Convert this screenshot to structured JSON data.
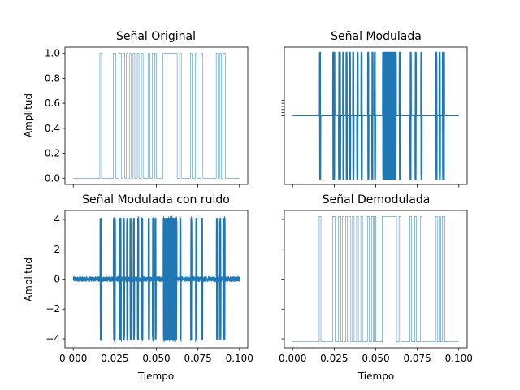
{
  "colors": {
    "series": "#1f77b4",
    "axis": "#000000",
    "background": "#ffffff"
  },
  "chart_data": [
    {
      "type": "line",
      "title": "Señal Original",
      "xlabel": "",
      "ylabel": "Amplitud",
      "xlim": [
        -0.005,
        0.105
      ],
      "ylim": [
        -0.05,
        1.05
      ],
      "yticks": [
        "0.0",
        "0.2",
        "0.4",
        "0.6",
        "0.8",
        "1.0"
      ],
      "ytick_values": [
        0.0,
        0.2,
        0.4,
        0.6,
        0.8,
        1.0
      ],
      "series": [
        {
          "style": "step",
          "high_intervals": [
            [
              0.016,
              0.017
            ],
            [
              0.024,
              0.0255
            ],
            [
              0.0275,
              0.029
            ],
            [
              0.03,
              0.031
            ],
            [
              0.032,
              0.033
            ],
            [
              0.034,
              0.035
            ],
            [
              0.036,
              0.037
            ],
            [
              0.0385,
              0.0395
            ],
            [
              0.041,
              0.042
            ],
            [
              0.045,
              0.046
            ],
            [
              0.0475,
              0.0485
            ],
            [
              0.049,
              0.05
            ],
            [
              0.054,
              0.0625
            ],
            [
              0.064,
              0.065
            ],
            [
              0.0705,
              0.0715
            ],
            [
              0.0735,
              0.0745
            ],
            [
              0.077,
              0.078
            ],
            [
              0.086,
              0.087
            ],
            [
              0.088,
              0.089
            ],
            [
              0.09,
              0.0915
            ]
          ],
          "low": 0,
          "high": 1
        }
      ]
    },
    {
      "type": "line",
      "title": "Señal Modulada",
      "xlabel": "",
      "ylabel": "",
      "xlim": [
        -0.005,
        0.105
      ],
      "ylim": [
        -4.4,
        4.4
      ],
      "series": [
        {
          "style": "burst",
          "amplitude": 4.1,
          "baseline": 0,
          "intervals_ref": 0
        }
      ]
    },
    {
      "type": "line",
      "title": "Señal Modulada con ruido",
      "xlabel": "Tiempo",
      "ylabel": "Amplitud",
      "xlim": [
        -0.005,
        0.105
      ],
      "ylim": [
        -4.6,
        4.6
      ],
      "xticks": [
        "0.000",
        "0.025",
        "0.050",
        "0.075",
        "0.100"
      ],
      "xtick_values": [
        0.0,
        0.025,
        0.05,
        0.075,
        0.1
      ],
      "yticks": [
        "−4",
        "−2",
        "0",
        "2",
        "4"
      ],
      "ytick_values": [
        -4,
        -2,
        0,
        2,
        4
      ],
      "series": [
        {
          "style": "burst-noise",
          "amplitude": 4.1,
          "baseline": 0,
          "noise": 0.18,
          "intervals_ref": 0
        }
      ]
    },
    {
      "type": "line",
      "title": "Señal Demodulada",
      "xlabel": "Tiempo",
      "ylabel": "",
      "xlim": [
        -0.005,
        0.105
      ],
      "ylim": [
        -4.6,
        4.6
      ],
      "xticks": [
        "0.000",
        "0.025",
        "0.050",
        "0.075",
        "0.100"
      ],
      "xtick_values": [
        0.0,
        0.025,
        0.05,
        0.075,
        0.1
      ],
      "series": [
        {
          "style": "step",
          "low": -4.2,
          "high": 4.2,
          "intervals_ref": 0
        }
      ]
    }
  ]
}
